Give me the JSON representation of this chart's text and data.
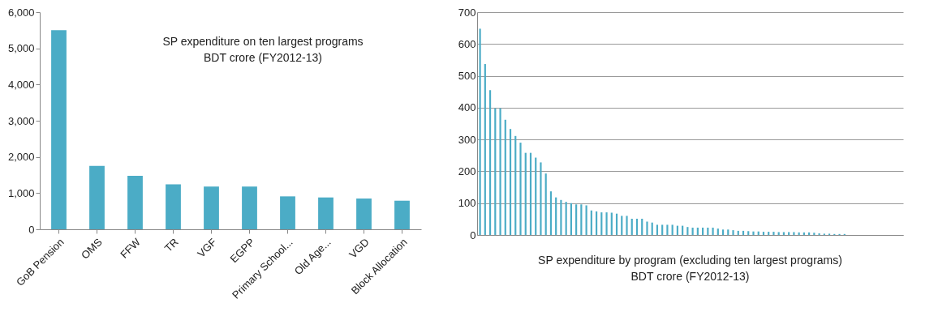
{
  "chart_data": [
    {
      "type": "bar",
      "title": "SP expenditure on ten largest programs",
      "subtitle": "BDT crore (FY2012-13)",
      "categories": [
        "GoB Pension",
        "OMS",
        "FFW",
        "TR",
        "VGF",
        "EGPP",
        "Primary School...",
        "Old Age...",
        "VGD",
        "Block Allocation"
      ],
      "values": [
        5500,
        1750,
        1480,
        1240,
        1180,
        1180,
        910,
        880,
        850,
        790
      ],
      "color": "#4bacc6",
      "ylim": [
        0,
        6000
      ],
      "yticks": [
        0,
        {
          "value": 1000,
          "label": "1,000"
        },
        {
          "value": 2000,
          "label": "2,000"
        },
        {
          "value": 3000,
          "label": "3,000"
        },
        {
          "value": 4000,
          "label": "4,000"
        },
        {
          "value": 5000,
          "label": "5,000"
        },
        {
          "value": 6000,
          "label": "6,000"
        }
      ],
      "grid": false
    },
    {
      "type": "bar",
      "title": "SP expenditure by program (excluding ten largest programs)",
      "subtitle": "BDT crore (FY2012-13)",
      "categories": [
        null,
        null,
        null,
        null,
        null,
        null,
        null,
        null,
        null,
        null,
        null,
        null,
        null,
        null,
        null,
        null,
        null,
        null,
        null,
        null,
        null,
        null,
        null,
        null,
        null,
        null,
        null,
        null,
        null,
        null,
        null,
        null,
        null,
        null,
        null,
        null,
        null,
        null,
        null,
        null,
        null,
        null,
        null,
        null,
        null,
        null,
        null,
        null,
        null,
        null,
        null,
        null,
        null,
        null,
        null,
        null,
        null,
        null,
        null,
        null,
        null,
        null,
        null,
        null,
        null,
        null,
        null,
        null,
        null,
        null,
        null,
        null,
        null,
        null,
        null,
        null,
        null,
        null,
        null,
        null,
        null,
        null,
        null,
        null
      ],
      "values": [
        648,
        537,
        455,
        398,
        398,
        362,
        333,
        311,
        290,
        258,
        258,
        243,
        228,
        193,
        137,
        118,
        110,
        104,
        100,
        96,
        96,
        93,
        77,
        74,
        71,
        71,
        70,
        67,
        60,
        60,
        51,
        51,
        51,
        42,
        39,
        32,
        32,
        32,
        32,
        29,
        29,
        25,
        23,
        23,
        23,
        23,
        23,
        20,
        17,
        17,
        15,
        13,
        13,
        12,
        11,
        11,
        10,
        10,
        10,
        9,
        9,
        9,
        9,
        8,
        8,
        8,
        7,
        5,
        4,
        4,
        3,
        3,
        3,
        null,
        null,
        null,
        null,
        null,
        null,
        null,
        null,
        null,
        null,
        null
      ],
      "color": "#4bacc6",
      "ylim": [
        0,
        700
      ],
      "yticks": [
        0,
        100,
        200,
        300,
        400,
        500,
        600,
        700
      ],
      "grid": "y",
      "tick_labels": "y"
    }
  ]
}
